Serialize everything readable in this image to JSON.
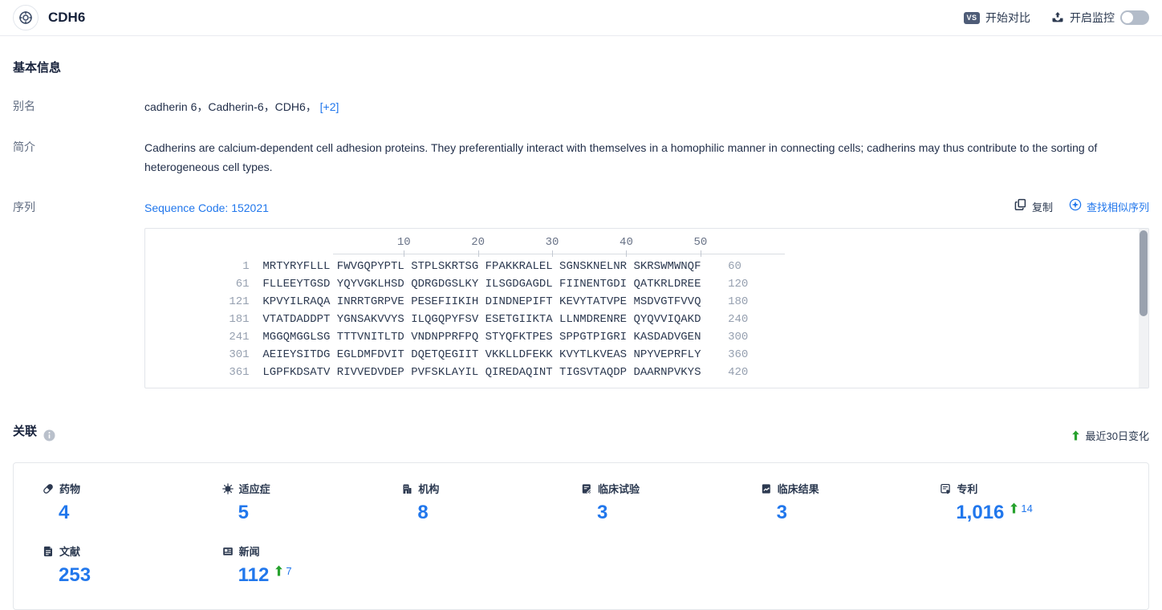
{
  "header": {
    "title": "CDH6",
    "vs_badge": "VS",
    "compare_label": "开始对比",
    "monitor_label": "开启监控"
  },
  "basic_info": {
    "section_title": "基本信息",
    "alias_label": "别名",
    "alias_value": "cadherin 6，Cadherin-6，CDH6，",
    "alias_more": "[+2]",
    "intro_label": "简介",
    "intro_text": "Cadherins are calcium-dependent cell adhesion proteins. They preferentially interact with themselves in a homophilic manner in connecting cells; cadherins may thus contribute to the sorting of heterogeneous cell types.",
    "sequence_label": "序列",
    "sequence_code": "Sequence Code: 152021",
    "copy_label": "复制",
    "find_similar_label": "查找相似序列"
  },
  "sequence_viewer": {
    "ruler_marks": [
      10,
      20,
      30,
      40,
      50
    ],
    "rows": [
      {
        "start": "1",
        "seq": "MRTYRYFLLL FWVGQPYPTL STPLSKRTSG FPAKKRALEL SGNSKNELNR SKRSWMWNQF",
        "end": "60"
      },
      {
        "start": "61",
        "seq": "FLLEEYTGSD YQYVGKLHSD QDRGDGSLKY ILSGDGAGDL FIINENTGDI QATKRLDREE",
        "end": "120"
      },
      {
        "start": "121",
        "seq": "KPVYILRAQA INRRTGRPVE PESEFIIKIH DINDNEPIFT KEVYTATVPE MSDVGTFVVQ",
        "end": "180"
      },
      {
        "start": "181",
        "seq": "VTATDADDPT YGNSAKVVYS ILQGQPYFSV ESETGIIKTA LLNMDRENRE QYQVVIQAKD",
        "end": "240"
      },
      {
        "start": "241",
        "seq": "MGGQMGGLSG TTTVNITLTD VNDNPPRFPQ STYQFKTPES SPPGTPIGRI KASDADVGEN",
        "end": "300"
      },
      {
        "start": "301",
        "seq": "AEIEYSITDG EGLDMFDVIT DQETQEGIIT VKKLLDFEKK KVYTLKVEAS NPYVEPRFLY",
        "end": "360"
      },
      {
        "start": "361",
        "seq": "LGPFKDSATV RIVVEDVDEP PVFSKLAYIL QIREDAQINT TIGSVTAQDP DAARNPVKYS",
        "end": "420"
      }
    ]
  },
  "associations": {
    "section_title": "关联",
    "recent_change_label": "最近30日变化",
    "stats": [
      {
        "label": "药物",
        "icon": "pill-icon",
        "value": "4"
      },
      {
        "label": "适应症",
        "icon": "virus-icon",
        "value": "5"
      },
      {
        "label": "机构",
        "icon": "building-icon",
        "value": "8"
      },
      {
        "label": "临床试验",
        "icon": "clinical-trial-icon",
        "value": "3"
      },
      {
        "label": "临床结果",
        "icon": "clinical-result-icon",
        "value": "3"
      },
      {
        "label": "专利",
        "icon": "patent-icon",
        "value": "1,016",
        "delta": "14"
      },
      {
        "label": "文献",
        "icon": "literature-icon",
        "value": "253"
      },
      {
        "label": "新闻",
        "icon": "news-icon",
        "value": "112",
        "delta": "7"
      }
    ]
  },
  "colors": {
    "accent_blue": "#2177ec",
    "green_up": "#27a22e",
    "dark_navy": "#2c3950"
  }
}
